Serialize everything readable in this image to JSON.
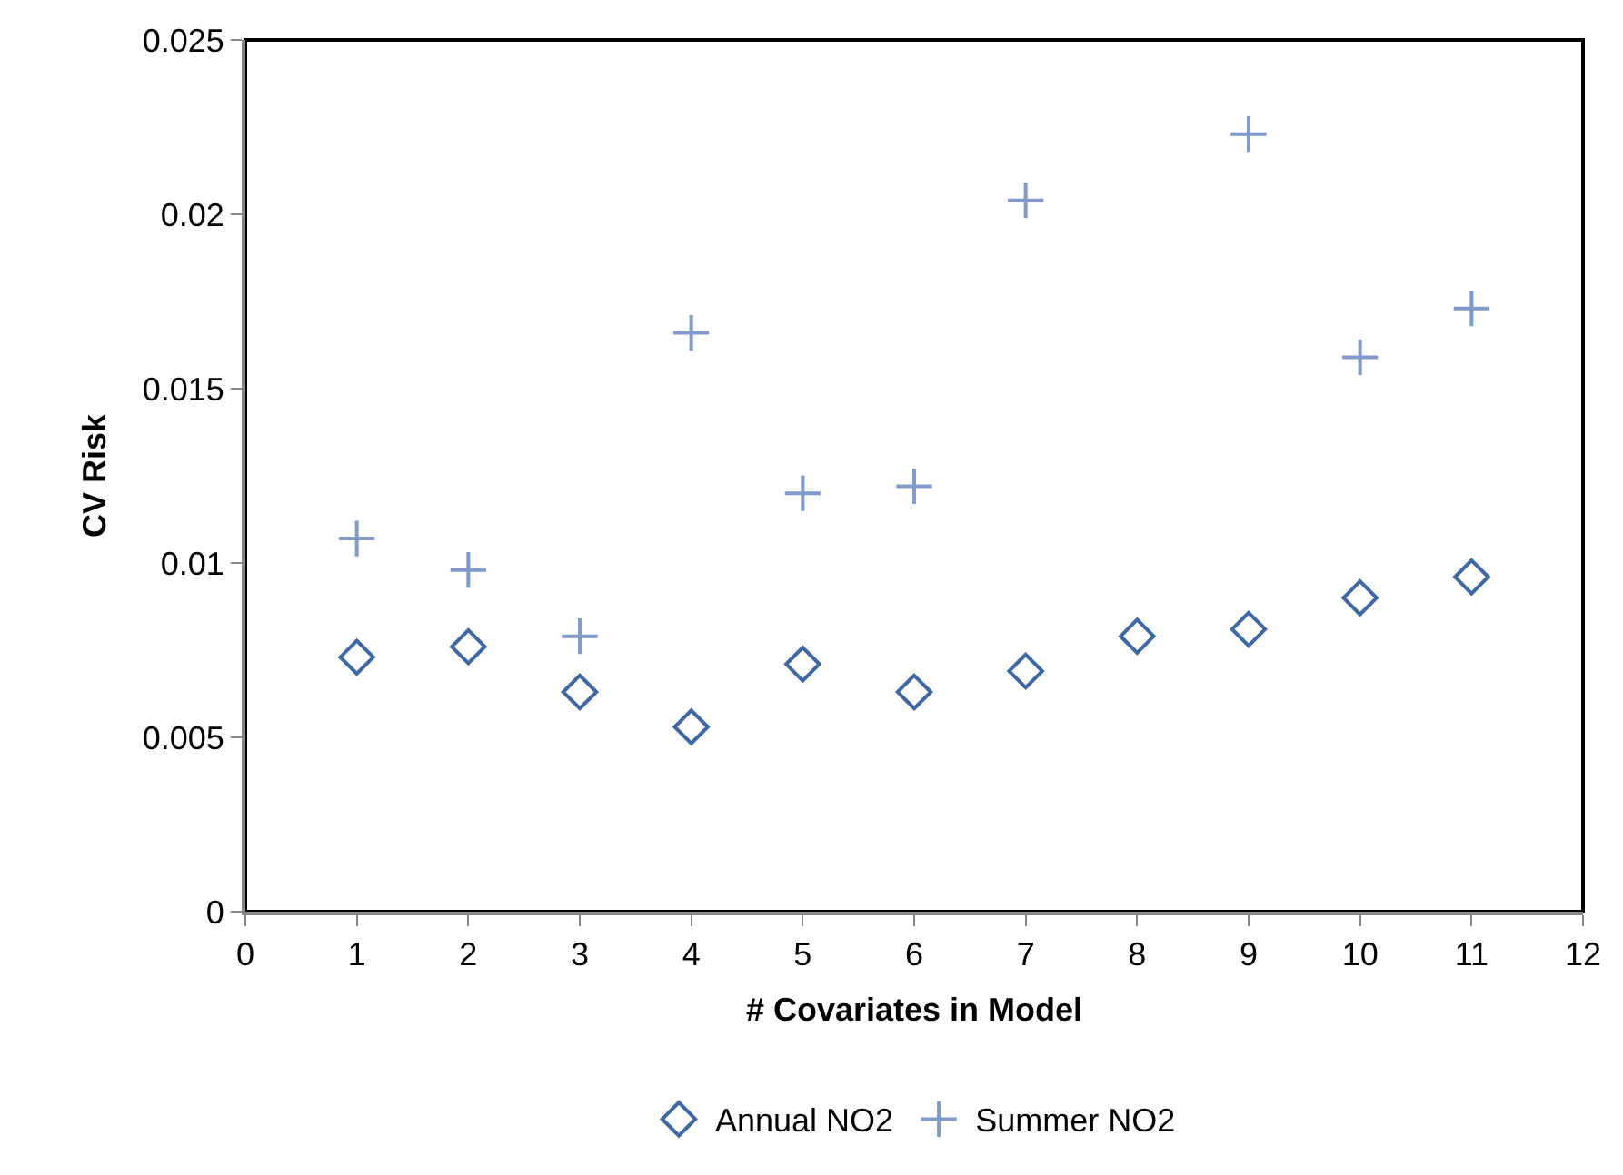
{
  "chart_data": {
    "type": "scatter",
    "xlabel": "# Covariates in Model",
    "ylabel": "CV Risk",
    "x": [
      1,
      2,
      3,
      4,
      5,
      6,
      7,
      8,
      9,
      10,
      11
    ],
    "series": [
      {
        "name": "Annual NO2",
        "color": "#3d68a8",
        "marker": "diamond",
        "values": [
          0.0073,
          0.0076,
          0.0063,
          0.0053,
          0.0071,
          0.0063,
          0.0069,
          0.0079,
          0.0081,
          0.009,
          0.0096
        ]
      },
      {
        "name": "Summer NO2",
        "color": "#7f9acb",
        "marker": "cross",
        "values": [
          0.0107,
          0.0098,
          0.0079,
          0.0166,
          0.012,
          0.0122,
          0.0204,
          null,
          0.0223,
          0.0159,
          0.0173
        ]
      }
    ],
    "xlim": [
      0,
      12
    ],
    "xticks": [
      0,
      1,
      2,
      3,
      4,
      5,
      6,
      7,
      8,
      9,
      10,
      11,
      12
    ],
    "ylim": [
      0,
      0.025
    ],
    "yticks": [
      0,
      0.005,
      0.01,
      0.015,
      0.02,
      0.025
    ],
    "grid": false,
    "legend": "bottom"
  }
}
